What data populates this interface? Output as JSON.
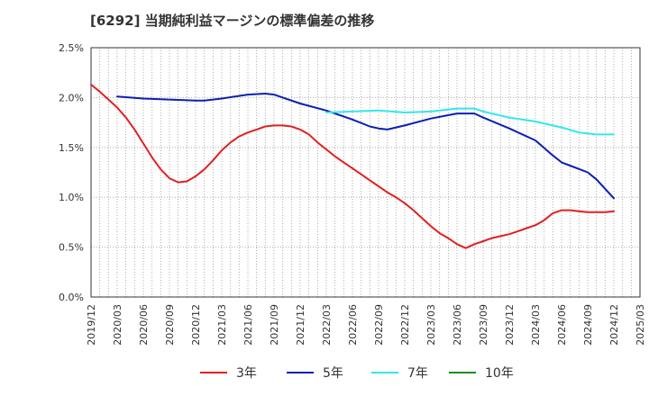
{
  "chart_data": {
    "type": "line",
    "title": "[6292]  当期純利益マージンの標準偏差の推移",
    "xlabel": "",
    "ylabel": "",
    "ylim": [
      0,
      0.025
    ],
    "y_ticks": [
      {
        "value": 0.0,
        "label": "0.0%"
      },
      {
        "value": 0.005,
        "label": "0.5%"
      },
      {
        "value": 0.01,
        "label": "1.0%"
      },
      {
        "value": 0.015,
        "label": "1.5%"
      },
      {
        "value": 0.02,
        "label": "2.0%"
      },
      {
        "value": 0.025,
        "label": "2.5%"
      }
    ],
    "x_range": [
      "2019/12",
      "2025/03"
    ],
    "x_tick_labels": [
      "2019/12",
      "2020/03",
      "2020/06",
      "2020/09",
      "2020/12",
      "2021/03",
      "2021/06",
      "2021/09",
      "2021/12",
      "2022/03",
      "2022/06",
      "2022/09",
      "2022/12",
      "2023/03",
      "2023/06",
      "2023/09",
      "2023/12",
      "2024/03",
      "2024/06",
      "2024/09",
      "2024/12",
      "2025/03"
    ],
    "grid": true,
    "legend_position": "bottom",
    "series": [
      {
        "name": "3年",
        "color": "#e02020",
        "points": [
          [
            "2019/12",
            0.0213
          ],
          [
            "2020/01",
            0.0206
          ],
          [
            "2020/02",
            0.0198
          ],
          [
            "2020/03",
            0.019
          ],
          [
            "2020/04",
            0.018
          ],
          [
            "2020/05",
            0.0168
          ],
          [
            "2020/06",
            0.0154
          ],
          [
            "2020/07",
            0.014
          ],
          [
            "2020/08",
            0.0128
          ],
          [
            "2020/09",
            0.0119
          ],
          [
            "2020/10",
            0.0115
          ],
          [
            "2020/11",
            0.0116
          ],
          [
            "2020/12",
            0.0121
          ],
          [
            "2021/01",
            0.0128
          ],
          [
            "2021/02",
            0.0137
          ],
          [
            "2021/03",
            0.0147
          ],
          [
            "2021/04",
            0.0155
          ],
          [
            "2021/05",
            0.0161
          ],
          [
            "2021/06",
            0.0165
          ],
          [
            "2021/07",
            0.0168
          ],
          [
            "2021/08",
            0.0171
          ],
          [
            "2021/09",
            0.0172
          ],
          [
            "2021/10",
            0.0172
          ],
          [
            "2021/11",
            0.0171
          ],
          [
            "2021/12",
            0.0168
          ],
          [
            "2022/01",
            0.0163
          ],
          [
            "2022/02",
            0.0155
          ],
          [
            "2022/03",
            0.0148
          ],
          [
            "2022/04",
            0.0141
          ],
          [
            "2022/05",
            0.0135
          ],
          [
            "2022/06",
            0.0129
          ],
          [
            "2022/07",
            0.0123
          ],
          [
            "2022/08",
            0.0117
          ],
          [
            "2022/09",
            0.0111
          ],
          [
            "2022/10",
            0.0105
          ],
          [
            "2022/11",
            0.01
          ],
          [
            "2022/12",
            0.0094
          ],
          [
            "2023/01",
            0.0087
          ],
          [
            "2023/02",
            0.0079
          ],
          [
            "2023/03",
            0.0071
          ],
          [
            "2023/04",
            0.0064
          ],
          [
            "2023/05",
            0.0059
          ],
          [
            "2023/06",
            0.0053
          ],
          [
            "2023/07",
            0.0049
          ],
          [
            "2023/08",
            0.0053
          ],
          [
            "2023/09",
            0.0056
          ],
          [
            "2023/10",
            0.0059
          ],
          [
            "2023/11",
            0.0061
          ],
          [
            "2023/12",
            0.0063
          ],
          [
            "2024/01",
            0.0066
          ],
          [
            "2024/02",
            0.0069
          ],
          [
            "2024/03",
            0.0072
          ],
          [
            "2024/04",
            0.0077
          ],
          [
            "2024/05",
            0.0084
          ],
          [
            "2024/06",
            0.0087
          ],
          [
            "2024/07",
            0.0087
          ],
          [
            "2024/08",
            0.0086
          ],
          [
            "2024/09",
            0.0085
          ],
          [
            "2024/10",
            0.0085
          ],
          [
            "2024/11",
            0.0085
          ],
          [
            "2024/12",
            0.0086
          ]
        ]
      },
      {
        "name": "5年",
        "color": "#0a1fb4",
        "points": [
          [
            "2020/03",
            0.0201
          ],
          [
            "2020/06",
            0.0199
          ],
          [
            "2020/09",
            0.0198
          ],
          [
            "2020/12",
            0.0197
          ],
          [
            "2021/01",
            0.0197
          ],
          [
            "2021/03",
            0.0199
          ],
          [
            "2021/06",
            0.0203
          ],
          [
            "2021/08",
            0.0204
          ],
          [
            "2021/09",
            0.0203
          ],
          [
            "2021/10",
            0.02
          ],
          [
            "2021/12",
            0.0194
          ],
          [
            "2022/03",
            0.0187
          ],
          [
            "2022/06",
            0.0178
          ],
          [
            "2022/08",
            0.0171
          ],
          [
            "2022/09",
            0.0169
          ],
          [
            "2022/10",
            0.0168
          ],
          [
            "2022/12",
            0.0172
          ],
          [
            "2023/03",
            0.0179
          ],
          [
            "2023/06",
            0.0184
          ],
          [
            "2023/08",
            0.0184
          ],
          [
            "2023/09",
            0.018
          ],
          [
            "2023/12",
            0.0169
          ],
          [
            "2024/03",
            0.0157
          ],
          [
            "2024/05",
            0.0142
          ],
          [
            "2024/06",
            0.0135
          ],
          [
            "2024/09",
            0.0125
          ],
          [
            "2024/10",
            0.0118
          ],
          [
            "2024/12",
            0.0099
          ]
        ]
      },
      {
        "name": "7年",
        "color": "#33e6ef",
        "points": [
          [
            "2022/03",
            0.0185
          ],
          [
            "2022/06",
            0.0186
          ],
          [
            "2022/09",
            0.0187
          ],
          [
            "2022/12",
            0.0185
          ],
          [
            "2023/03",
            0.0186
          ],
          [
            "2023/06",
            0.0189
          ],
          [
            "2023/08",
            0.0189
          ],
          [
            "2023/09",
            0.0186
          ],
          [
            "2023/12",
            0.018
          ],
          [
            "2024/03",
            0.0176
          ],
          [
            "2024/06",
            0.017
          ],
          [
            "2024/08",
            0.0165
          ],
          [
            "2024/10",
            0.0163
          ],
          [
            "2024/12",
            0.0163
          ]
        ]
      },
      {
        "name": "10年",
        "color": "#1e8c1e",
        "points": []
      }
    ]
  }
}
